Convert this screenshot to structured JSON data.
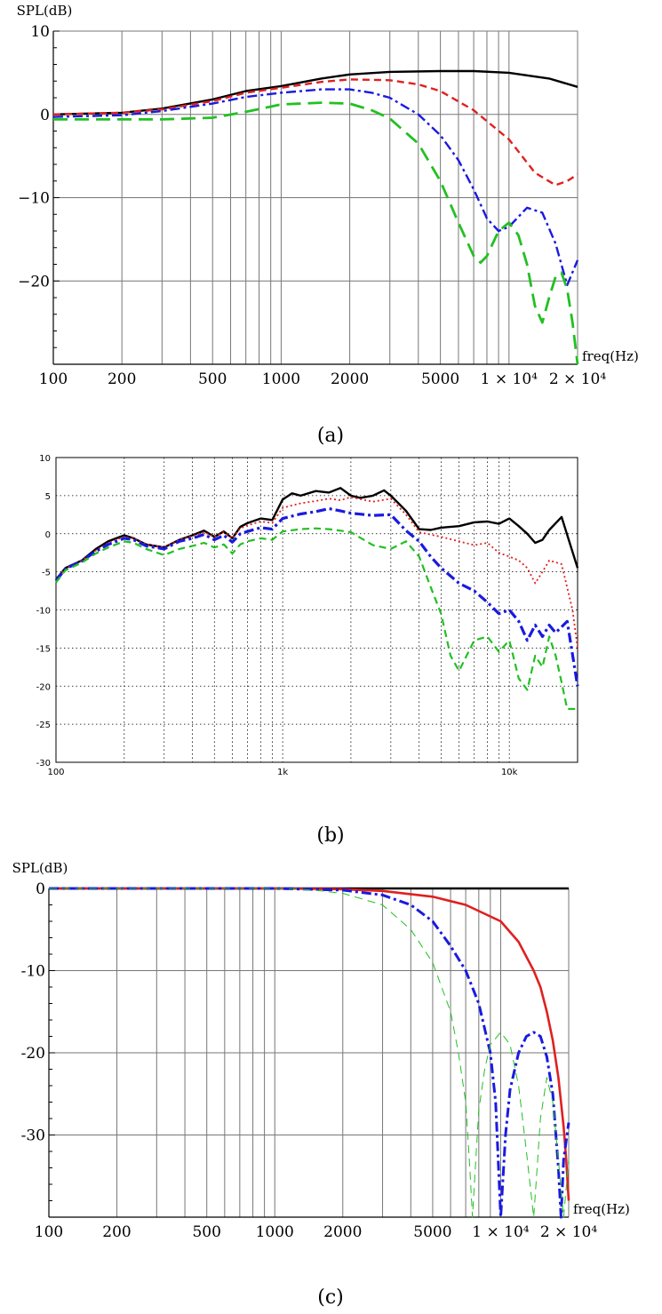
{
  "chart_data": [
    {
      "panel": "(a)",
      "type": "line",
      "ylabel": "SPL(dB)",
      "xlabel": "freq(Hz)",
      "x_scale": "log",
      "xlim": [
        100,
        20000
      ],
      "ylim": [
        -30,
        10
      ],
      "x_ticks": [
        100,
        200,
        500,
        1000,
        2000,
        5000,
        10000,
        20000
      ],
      "x_tick_labels": [
        "100",
        "200",
        "500",
        "1000",
        "2000",
        "5000",
        "1 × 10⁴",
        "2 × 10⁴"
      ],
      "y_ticks": [
        10,
        0,
        -10,
        -20
      ],
      "y_tick_labels": [
        "10",
        "0",
        "−10",
        "−20"
      ],
      "grid": true,
      "series": [
        {
          "color": "#000000",
          "style": "solid",
          "x": [
            100,
            200,
            300,
            500,
            700,
            1000,
            1500,
            2000,
            3000,
            5000,
            7000,
            10000,
            15000,
            20000
          ],
          "y": [
            0.0,
            0.2,
            0.7,
            1.8,
            2.8,
            3.4,
            4.3,
            4.8,
            5.1,
            5.2,
            5.2,
            5.0,
            4.3,
            3.3
          ]
        },
        {
          "color": "#e02020",
          "style": "dashed",
          "x": [
            100,
            200,
            300,
            500,
            700,
            1000,
            1500,
            2000,
            3000,
            4000,
            5000,
            7000,
            10000,
            13000,
            16000,
            18000,
            20000
          ],
          "y": [
            0.0,
            0.2,
            0.6,
            1.6,
            2.6,
            3.2,
            3.9,
            4.2,
            4.1,
            3.6,
            2.8,
            0.5,
            -3.0,
            -7.0,
            -8.5,
            -8.0,
            -7.2
          ]
        },
        {
          "color": "#1a1ae0",
          "style": "dashdot",
          "x": [
            100,
            200,
            300,
            500,
            700,
            1000,
            1500,
            2000,
            2500,
            3000,
            4000,
            5000,
            6000,
            7000,
            8000,
            9000,
            10000,
            12000,
            14000,
            16000,
            18000,
            20000
          ],
          "y": [
            -0.3,
            -0.1,
            0.4,
            1.3,
            2.1,
            2.6,
            3.0,
            3.0,
            2.6,
            2.0,
            0.0,
            -2.5,
            -5.5,
            -9.0,
            -12.5,
            -14.0,
            -13.5,
            -11.2,
            -11.8,
            -15.5,
            -20.5,
            -17.5
          ]
        },
        {
          "color": "#22c022",
          "style": "longdash",
          "x": [
            100,
            200,
            300,
            500,
            700,
            1000,
            1500,
            2000,
            2500,
            3000,
            4000,
            5000,
            6000,
            7000,
            7500,
            8000,
            9000,
            10000,
            11000,
            12000,
            13000,
            14000,
            15000,
            16000,
            17000,
            18000,
            19000,
            20000
          ],
          "y": [
            -0.6,
            -0.6,
            -0.6,
            -0.4,
            0.3,
            1.2,
            1.4,
            1.3,
            0.5,
            -0.5,
            -3.5,
            -8.0,
            -13.0,
            -17.0,
            -17.8,
            -17.0,
            -14.0,
            -13.0,
            -14.5,
            -18.0,
            -23.0,
            -25.0,
            -22.0,
            -19.5,
            -19.0,
            -21.0,
            -25.0,
            -30.0
          ]
        }
      ]
    },
    {
      "panel": "(b)",
      "type": "line",
      "x_scale": "log",
      "xlim": [
        100,
        20000
      ],
      "ylim": [
        -30,
        10
      ],
      "x_ticks": [
        100,
        1000,
        10000
      ],
      "x_tick_labels": [
        "100",
        "1k",
        "10k"
      ],
      "y_ticks": [
        10,
        5,
        0,
        -5,
        -10,
        -15,
        -20,
        -25,
        -30
      ],
      "y_tick_labels": [
        "10",
        "5",
        "0",
        "-5",
        "-10",
        "-15",
        "-20",
        "-25",
        "-30"
      ],
      "grid": "dotted",
      "series": [
        {
          "color": "#000000",
          "style": "solid",
          "x": [
            100,
            110,
            130,
            150,
            170,
            200,
            220,
            250,
            300,
            350,
            400,
            450,
            500,
            550,
            600,
            650,
            700,
            800,
            900,
            1000,
            1100,
            1200,
            1400,
            1600,
            1800,
            2000,
            2200,
            2500,
            2800,
            3000,
            3500,
            4000,
            4500,
            5000,
            6000,
            7000,
            8000,
            9000,
            10000,
            11000,
            12000,
            13000,
            14000,
            15000,
            17000,
            20000
          ],
          "y": [
            -6.0,
            -4.5,
            -3.5,
            -2.0,
            -1.0,
            -0.2,
            -0.6,
            -1.4,
            -1.8,
            -0.8,
            -0.2,
            0.4,
            -0.4,
            0.3,
            -0.6,
            0.9,
            1.4,
            2.0,
            1.8,
            4.5,
            5.3,
            5.0,
            5.6,
            5.4,
            6.0,
            5.0,
            4.7,
            5.0,
            5.7,
            5.0,
            3.0,
            0.6,
            0.5,
            0.8,
            1.0,
            1.5,
            1.6,
            1.3,
            2.0,
            1.0,
            0.0,
            -1.2,
            -0.8,
            0.5,
            2.2,
            -4.5
          ]
        },
        {
          "color": "#e02020",
          "style": "dotted",
          "x": [
            100,
            110,
            130,
            150,
            170,
            200,
            220,
            250,
            300,
            350,
            400,
            450,
            500,
            550,
            600,
            650,
            700,
            800,
            900,
            1000,
            1200,
            1400,
            1600,
            1800,
            2000,
            2500,
            3000,
            3500,
            4000,
            5000,
            6000,
            7000,
            8000,
            9000,
            10000,
            11000,
            12000,
            13000,
            14000,
            15000,
            17000,
            19000,
            20000
          ],
          "y": [
            -6.0,
            -4.5,
            -3.5,
            -2.2,
            -1.2,
            -0.4,
            -0.6,
            -1.4,
            -1.8,
            -0.8,
            -0.3,
            0.2,
            -0.4,
            0.2,
            -0.6,
            0.7,
            1.1,
            1.6,
            1.4,
            3.4,
            4.0,
            4.3,
            4.6,
            4.4,
            4.8,
            4.2,
            4.6,
            2.5,
            0.2,
            -0.4,
            -1.0,
            -1.5,
            -1.2,
            -2.5,
            -3.0,
            -3.5,
            -4.5,
            -6.5,
            -5.0,
            -3.5,
            -4.0,
            -10.0,
            -15.0
          ]
        },
        {
          "color": "#1a1ae0",
          "style": "dashdot",
          "x": [
            100,
            110,
            130,
            150,
            170,
            200,
            220,
            250,
            300,
            350,
            400,
            450,
            500,
            550,
            600,
            650,
            700,
            800,
            900,
            1000,
            1200,
            1400,
            1600,
            1800,
            2000,
            2500,
            3000,
            3500,
            4000,
            4500,
            5000,
            6000,
            7000,
            8000,
            9000,
            10000,
            11000,
            12000,
            13000,
            14000,
            15000,
            16000,
            18000,
            20000
          ],
          "y": [
            -6.2,
            -4.6,
            -3.6,
            -2.3,
            -1.4,
            -0.6,
            -0.8,
            -1.6,
            -2.0,
            -1.0,
            -0.6,
            -0.1,
            -0.8,
            -0.2,
            -1.1,
            0.0,
            0.3,
            0.8,
            0.6,
            2.0,
            2.6,
            2.9,
            3.3,
            3.0,
            2.7,
            2.4,
            2.5,
            0.4,
            -1.0,
            -3.0,
            -4.5,
            -6.5,
            -7.5,
            -9.0,
            -10.5,
            -10.0,
            -11.5,
            -14.0,
            -12.0,
            -13.5,
            -12.0,
            -13.0,
            -11.5,
            -20.0
          ]
        },
        {
          "color": "#22c022",
          "style": "dashed",
          "x": [
            100,
            110,
            130,
            150,
            170,
            200,
            220,
            250,
            300,
            350,
            400,
            450,
            500,
            550,
            600,
            650,
            700,
            800,
            900,
            1000,
            1200,
            1400,
            1600,
            1800,
            2000,
            2500,
            3000,
            3500,
            4000,
            4500,
            5000,
            5500,
            6000,
            7000,
            8000,
            9000,
            10000,
            11000,
            12000,
            13000,
            14000,
            15000,
            16000,
            17000,
            18000,
            20000
          ],
          "y": [
            -6.4,
            -4.8,
            -3.8,
            -2.6,
            -1.8,
            -1.0,
            -1.2,
            -2.0,
            -2.8,
            -2.0,
            -1.6,
            -1.2,
            -1.8,
            -1.4,
            -2.6,
            -1.4,
            -1.0,
            -0.6,
            -0.8,
            0.3,
            0.6,
            0.7,
            0.6,
            0.4,
            0.2,
            -1.5,
            -2.0,
            -1.0,
            -3.0,
            -7.0,
            -10.5,
            -16.0,
            -18.0,
            -14.0,
            -13.5,
            -15.5,
            -14.0,
            -19.0,
            -20.5,
            -16.0,
            -17.5,
            -13.5,
            -16.0,
            -19.5,
            -23.0,
            -23.0
          ]
        }
      ]
    },
    {
      "panel": "(c)",
      "type": "line",
      "ylabel": "SPL(dB)",
      "xlabel": "freq(Hz)",
      "x_scale": "log",
      "xlim": [
        100,
        20000
      ],
      "ylim": [
        -40,
        0
      ],
      "x_ticks": [
        100,
        200,
        500,
        1000,
        2000,
        5000,
        10000,
        20000
      ],
      "x_tick_labels": [
        "100",
        "200",
        "500",
        "1000",
        "2000",
        "5000",
        "1 × 10⁴",
        "2 × 10⁴"
      ],
      "y_ticks": [
        0,
        -10,
        -20,
        -30
      ],
      "y_tick_labels": [
        "0",
        "-10",
        "-20",
        "-30"
      ],
      "grid": true,
      "series": [
        {
          "color": "#000000",
          "style": "solid",
          "x": [
            100,
            20000
          ],
          "y": [
            0,
            0
          ]
        },
        {
          "color": "#e02020",
          "style": "solid",
          "x": [
            100,
            1000,
            2000,
            3000,
            5000,
            7000,
            10000,
            12000,
            14000,
            15000,
            16000,
            17000,
            18000,
            19000,
            19500,
            20000
          ],
          "y": [
            0,
            0,
            -0.1,
            -0.3,
            -1.0,
            -2.0,
            -4.0,
            -6.5,
            -10.0,
            -12.0,
            -15.0,
            -18.5,
            -23.0,
            -29.0,
            -33.0,
            -38.0
          ]
        },
        {
          "color": "#1a1ae0",
          "style": "dashdot",
          "x": [
            100,
            1000,
            2000,
            3000,
            4000,
            5000,
            6000,
            7000,
            8000,
            9000,
            9500,
            10000,
            10500,
            11000,
            12000,
            13000,
            14000,
            15000,
            16000,
            17000,
            18000,
            18500,
            19000,
            20000
          ],
          "y": [
            0,
            0,
            -0.2,
            -0.8,
            -2.0,
            -4.0,
            -7.0,
            -10.0,
            -14.0,
            -20.0,
            -26.0,
            -40.0,
            -30.0,
            -24.5,
            -20.0,
            -18.0,
            -17.5,
            -18.0,
            -20.5,
            -25.0,
            -34.0,
            -40.0,
            -33.0,
            -28.5
          ]
        },
        {
          "color": "#22c022",
          "style": "thin-dashed",
          "x": [
            100,
            1000,
            1500,
            2000,
            3000,
            4000,
            5000,
            6000,
            6500,
            7000,
            7300,
            7500,
            7800,
            8000,
            8500,
            9000,
            10000,
            11000,
            12000,
            13000,
            14000,
            14500,
            15000,
            16000,
            17000,
            18000,
            19000,
            20000
          ],
          "y": [
            0,
            0,
            -0.2,
            -0.6,
            -2.0,
            -5.0,
            -9.0,
            -15.0,
            -20.0,
            -26.0,
            -34.0,
            -40.0,
            -32.0,
            -27.0,
            -22.0,
            -19.0,
            -17.5,
            -19.0,
            -24.0,
            -32.0,
            -40.0,
            -34.0,
            -28.0,
            -23.0,
            -26.0,
            -33.0,
            -40.0,
            -33.0
          ]
        }
      ]
    }
  ],
  "captions": [
    "(a)",
    "(b)",
    "(c)"
  ]
}
